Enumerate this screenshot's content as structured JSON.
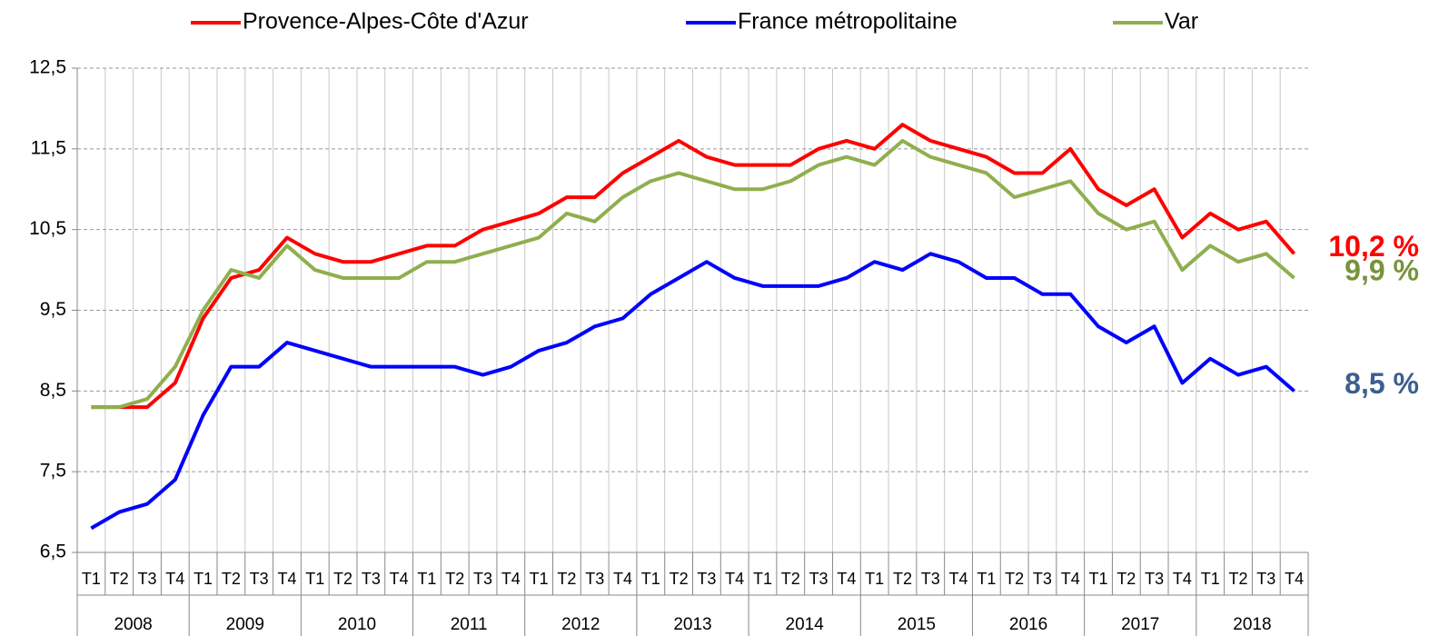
{
  "chart_data": {
    "type": "line",
    "categories": [
      "T1",
      "T2",
      "T3",
      "T4",
      "T1",
      "T2",
      "T3",
      "T4",
      "T1",
      "T2",
      "T3",
      "T4",
      "T1",
      "T2",
      "T3",
      "T4",
      "T1",
      "T2",
      "T3",
      "T4",
      "T1",
      "T2",
      "T3",
      "T4",
      "T1",
      "T2",
      "T3",
      "T4",
      "T1",
      "T2",
      "T3",
      "T4",
      "T1",
      "T2",
      "T3",
      "T4",
      "T1",
      "T2",
      "T3",
      "T4",
      "T1",
      "T2",
      "T3",
      "T4"
    ],
    "groups": [
      "2008",
      "2009",
      "2010",
      "2011",
      "2012",
      "2013",
      "2014",
      "2015",
      "2016",
      "2017",
      "2018"
    ],
    "series": [
      {
        "name": "Provence-Alpes-Côte d'Azur",
        "color": "#ff0000",
        "values": [
          8.3,
          8.3,
          8.3,
          8.6,
          9.4,
          9.9,
          10.0,
          10.4,
          10.2,
          10.1,
          10.1,
          10.2,
          10.3,
          10.3,
          10.5,
          10.6,
          10.7,
          10.9,
          10.9,
          11.2,
          11.4,
          11.6,
          11.4,
          11.3,
          11.3,
          11.3,
          11.5,
          11.6,
          11.5,
          11.8,
          11.6,
          11.5,
          11.4,
          11.2,
          11.2,
          11.5,
          11.0,
          10.8,
          11.0,
          10.4,
          10.7,
          10.5,
          10.6,
          10.2
        ]
      },
      {
        "name": "France métropolitaine",
        "color": "#0000ff",
        "values": [
          6.8,
          7.0,
          7.1,
          7.4,
          8.2,
          8.8,
          8.8,
          9.1,
          9.0,
          8.9,
          8.8,
          8.8,
          8.8,
          8.8,
          8.7,
          8.8,
          9.0,
          9.1,
          9.3,
          9.4,
          9.7,
          9.9,
          10.1,
          9.9,
          9.8,
          9.8,
          9.8,
          9.9,
          10.1,
          10.0,
          10.2,
          10.1,
          9.9,
          9.9,
          9.7,
          9.7,
          9.3,
          9.1,
          9.3,
          8.6,
          8.9,
          8.7,
          8.8,
          8.5
        ]
      },
      {
        "name": "Var",
        "color": "#8faf4e",
        "values": [
          8.3,
          8.3,
          8.4,
          8.8,
          9.5,
          10.0,
          9.9,
          10.3,
          10.0,
          9.9,
          9.9,
          9.9,
          10.1,
          10.1,
          10.2,
          10.3,
          10.4,
          10.7,
          10.6,
          10.9,
          11.1,
          11.2,
          11.1,
          11.0,
          11.0,
          11.1,
          11.3,
          11.4,
          11.3,
          11.6,
          11.4,
          11.3,
          11.2,
          10.9,
          11.0,
          11.1,
          10.7,
          10.5,
          10.6,
          10.0,
          10.3,
          10.1,
          10.2,
          9.9
        ]
      }
    ],
    "annotations": [
      {
        "text": "10,2 %",
        "color": "#ff0000",
        "series": 0
      },
      {
        "text": "9,9 %",
        "color": "#77933c",
        "series": 2
      },
      {
        "text": "8,5 %",
        "color": "#3b5f8f",
        "series": 1
      }
    ],
    "ylim": [
      6.5,
      12.5
    ],
    "yticks": [
      {
        "value": 6.5,
        "label": "6,5"
      },
      {
        "value": 7.5,
        "label": "7,5"
      },
      {
        "value": 8.5,
        "label": "8,5"
      },
      {
        "value": 9.5,
        "label": "9,5"
      },
      {
        "value": 10.5,
        "label": "10,5"
      },
      {
        "value": 11.5,
        "label": "11,5"
      },
      {
        "value": 12.5,
        "label": "12,5"
      }
    ],
    "grid": true
  }
}
